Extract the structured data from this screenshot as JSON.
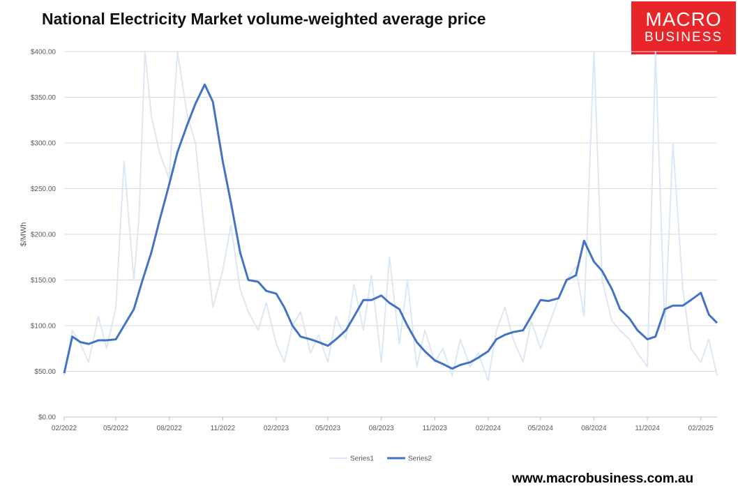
{
  "header": {
    "title": "National Electricity Market volume-weighted average price"
  },
  "logo": {
    "line1": "MACRO",
    "line2": "BUSINESS"
  },
  "footer": {
    "url": "www.macrobusiness.com.au"
  },
  "colors": {
    "series1": "#dbe8f4",
    "series2": "#4472c4",
    "logo_bg": "#e8262a",
    "gridline": "#d9d9d9"
  },
  "chart_data": {
    "type": "line",
    "title": "National Electricity Market volume-weighted average price",
    "ylabel": "$/MWh",
    "ylim": [
      0,
      400
    ],
    "yticks": [
      "$0.00",
      "$50.00",
      "$100.00",
      "$150.00",
      "$200.00",
      "$250.00",
      "$300.00",
      "$350.00",
      "$400.00"
    ],
    "ytick_values": [
      0,
      50,
      100,
      150,
      200,
      250,
      300,
      350,
      400
    ],
    "xlim": [
      "2022-02",
      "2025-03"
    ],
    "xticks": [
      "02/2022",
      "05/2022",
      "08/2022",
      "11/2022",
      "02/2023",
      "05/2023",
      "08/2023",
      "11/2023",
      "02/2024",
      "05/2024",
      "08/2024",
      "11/2024",
      "02/2025"
    ],
    "xtick_dates": [
      "2022-02",
      "2022-05",
      "2022-08",
      "2022-11",
      "2023-02",
      "2023-05",
      "2023-08",
      "2023-11",
      "2024-02",
      "2024-05",
      "2024-08",
      "2024-11",
      "2025-02"
    ],
    "grid": true,
    "legend": "bottom",
    "series": [
      {
        "name": "Series1",
        "style": "thin-light",
        "x": [
          "2022-02",
          "2022-02-15",
          "2022-03",
          "2022-03-15",
          "2022-04",
          "2022-04-15",
          "2022-05",
          "2022-05-15",
          "2022-06",
          "2022-06-10",
          "2022-06-20",
          "2022-07",
          "2022-07-15",
          "2022-08",
          "2022-08-15",
          "2022-09",
          "2022-09-15",
          "2022-10",
          "2022-10-15",
          "2022-11",
          "2022-11-15",
          "2022-12",
          "2022-12-15",
          "2023-01",
          "2023-01-15",
          "2023-02",
          "2023-02-15",
          "2023-03",
          "2023-03-15",
          "2023-04",
          "2023-04-15",
          "2023-05",
          "2023-05-15",
          "2023-06",
          "2023-06-15",
          "2023-07",
          "2023-07-15",
          "2023-08",
          "2023-08-15",
          "2023-09",
          "2023-09-15",
          "2023-10",
          "2023-10-15",
          "2023-11",
          "2023-11-15",
          "2023-12",
          "2023-12-15",
          "2024-01",
          "2024-01-15",
          "2024-02",
          "2024-02-15",
          "2024-03",
          "2024-03-15",
          "2024-04",
          "2024-04-15",
          "2024-05",
          "2024-05-15",
          "2024-06",
          "2024-06-15",
          "2024-07",
          "2024-07-15",
          "2024-08",
          "2024-08-15",
          "2024-09",
          "2024-09-15",
          "2024-10",
          "2024-10-15",
          "2024-11",
          "2024-11-15",
          "2024-12",
          "2024-12-15",
          "2025-01",
          "2025-01-15",
          "2025-02",
          "2025-02-15",
          "2025-03"
        ],
        "values": [
          45,
          95,
          80,
          60,
          110,
          75,
          120,
          280,
          150,
          220,
          400,
          330,
          290,
          260,
          400,
          330,
          300,
          200,
          120,
          160,
          210,
          140,
          115,
          95,
          125,
          80,
          60,
          100,
          115,
          70,
          90,
          60,
          110,
          85,
          145,
          95,
          155,
          60,
          175,
          80,
          150,
          55,
          95,
          60,
          75,
          45,
          85,
          55,
          70,
          40,
          95,
          120,
          85,
          60,
          105,
          75,
          100,
          130,
          150,
          165,
          110,
          400,
          150,
          105,
          95,
          85,
          70,
          55,
          400,
          95,
          300,
          140,
          75,
          60,
          85,
          45
        ]
      },
      {
        "name": "Series2",
        "style": "thick-dark",
        "x": [
          "2022-02",
          "2022-02-15",
          "2022-03",
          "2022-03-15",
          "2022-04",
          "2022-04-15",
          "2022-05",
          "2022-05-15",
          "2022-06",
          "2022-06-15",
          "2022-07",
          "2022-07-15",
          "2022-08",
          "2022-08-15",
          "2022-09",
          "2022-09-15",
          "2022-10",
          "2022-10-15",
          "2022-11",
          "2022-11-15",
          "2022-12",
          "2022-12-15",
          "2023-01",
          "2023-01-15",
          "2023-02",
          "2023-02-15",
          "2023-03",
          "2023-03-15",
          "2023-04",
          "2023-04-15",
          "2023-05",
          "2023-05-15",
          "2023-06",
          "2023-06-15",
          "2023-07",
          "2023-07-15",
          "2023-08",
          "2023-08-15",
          "2023-09",
          "2023-09-15",
          "2023-10",
          "2023-10-15",
          "2023-11",
          "2023-11-15",
          "2023-12",
          "2023-12-15",
          "2024-01",
          "2024-01-15",
          "2024-02",
          "2024-02-15",
          "2024-03",
          "2024-03-15",
          "2024-04",
          "2024-04-15",
          "2024-05",
          "2024-05-15",
          "2024-06",
          "2024-06-15",
          "2024-07",
          "2024-07-15",
          "2024-08",
          "2024-08-15",
          "2024-09",
          "2024-09-15",
          "2024-10",
          "2024-10-15",
          "2024-11",
          "2024-11-15",
          "2024-12",
          "2024-12-15",
          "2025-01",
          "2025-01-15",
          "2025-02",
          "2025-02-15",
          "2025-03"
        ],
        "values": [
          48,
          88,
          82,
          80,
          84,
          84,
          85,
          100,
          118,
          148,
          180,
          215,
          255,
          290,
          320,
          343,
          364,
          345,
          280,
          235,
          180,
          150,
          148,
          138,
          135,
          120,
          100,
          88,
          85,
          82,
          78,
          85,
          95,
          110,
          128,
          128,
          133,
          125,
          118,
          100,
          82,
          72,
          62,
          58,
          53,
          57,
          60,
          65,
          72,
          85,
          90,
          93,
          95,
          110,
          128,
          127,
          130,
          150,
          155,
          193,
          170,
          160,
          140,
          118,
          108,
          95,
          85,
          88,
          118,
          122,
          122,
          128,
          136,
          112,
          103
        ]
      }
    ]
  }
}
